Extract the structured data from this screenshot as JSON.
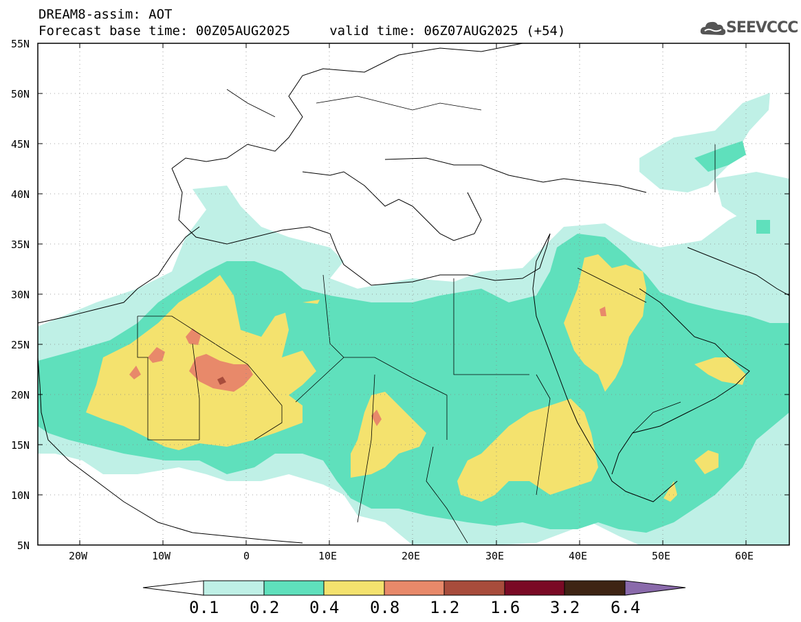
{
  "header": {
    "title_line1": "DREAM8-assim: AOT",
    "title_line2": "Forecast base time: 00Z05AUG2025     valid time: 06Z07AUG2025 (+54)",
    "logo_text": "SEEVCCC"
  },
  "map": {
    "region": "North Africa, Mediterranean, Middle East",
    "lon_range": [
      -25,
      65
    ],
    "lat_range": [
      5,
      55
    ],
    "lat_labels": [
      "55N",
      "50N",
      "45N",
      "40N",
      "35N",
      "30N",
      "25N",
      "20N",
      "15N",
      "10N",
      "5N"
    ],
    "lon_labels": [
      "20W",
      "10W",
      "0",
      "10E",
      "20E",
      "30E",
      "40E",
      "50E",
      "60E"
    ],
    "grid": true
  },
  "colorbar": {
    "labels": [
      "0.1",
      "0.2",
      "0.4",
      "0.8",
      "1.2",
      "1.6",
      "3.2",
      "6.4"
    ],
    "colors": [
      "#ffffff",
      "#bff0e6",
      "#5fe0bc",
      "#f4e26e",
      "#e8896a",
      "#a84c3c",
      "#7a0a25",
      "#3e2414",
      "#8a6aab"
    ]
  }
}
